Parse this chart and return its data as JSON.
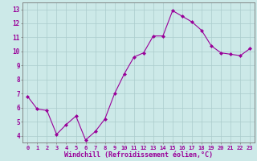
{
  "x": [
    0,
    1,
    2,
    3,
    4,
    5,
    6,
    7,
    8,
    9,
    10,
    11,
    12,
    13,
    14,
    15,
    16,
    17,
    18,
    19,
    20,
    21,
    22,
    23
  ],
  "y": [
    6.8,
    5.9,
    5.8,
    4.1,
    4.8,
    5.4,
    3.7,
    4.3,
    5.2,
    7.0,
    8.4,
    9.6,
    9.9,
    11.1,
    11.1,
    12.9,
    12.5,
    12.1,
    11.5,
    10.4,
    9.9,
    9.8,
    9.7,
    10.2
  ],
  "line_color": "#990099",
  "marker": "D",
  "marker_size": 2.0,
  "bg_color": "#cce9e8",
  "grid_color": "#aacccc",
  "xlabel": "Windchill (Refroidissement éolien,°C)",
  "ylabel_ticks": [
    4,
    5,
    6,
    7,
    8,
    9,
    10,
    11,
    12,
    13
  ],
  "ylim": [
    3.5,
    13.5
  ],
  "xlim": [
    -0.5,
    23.5
  ],
  "tick_color": "#990099",
  "label_color": "#990099",
  "spine_color": "#777777"
}
